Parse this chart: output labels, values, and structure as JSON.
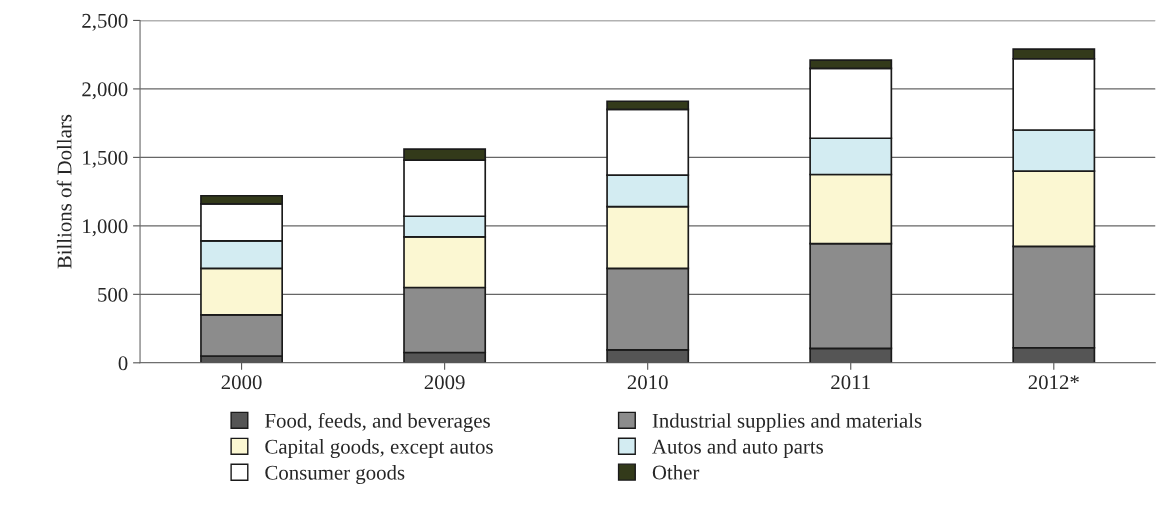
{
  "chart_data": {
    "type": "bar",
    "stacked": true,
    "ylabel": "Billions of Dollars",
    "categories": [
      "2000",
      "2009",
      "2010",
      "2011",
      "2012*"
    ],
    "series": [
      {
        "name": "Food, feeds, and beverages",
        "color": "#555555",
        "values": [
          50,
          75,
          95,
          105,
          110
        ]
      },
      {
        "name": "Industrial supplies and materials",
        "color": "#8c8c8c",
        "values": [
          300,
          475,
          595,
          765,
          740
        ]
      },
      {
        "name": "Capital goods, except autos",
        "color": "#fbf7d2",
        "values": [
          340,
          370,
          450,
          505,
          550
        ]
      },
      {
        "name": "Autos and auto parts",
        "color": "#d3ecf2",
        "values": [
          200,
          150,
          230,
          265,
          300
        ]
      },
      {
        "name": "Consumer goods",
        "color": "#ffffff",
        "values": [
          270,
          410,
          480,
          510,
          520
        ]
      },
      {
        "name": "Other",
        "color": "#333a1a",
        "values": [
          60,
          80,
          60,
          60,
          70
        ]
      }
    ],
    "ylim": [
      0,
      2500
    ],
    "yticks": [
      {
        "value": 0,
        "label": "0"
      },
      {
        "value": 500,
        "label": "500"
      },
      {
        "value": 1000,
        "label": "1,000"
      },
      {
        "value": 1500,
        "label": "1,500"
      },
      {
        "value": 2000,
        "label": "2,000"
      },
      {
        "value": 2500,
        "label": "2,500"
      }
    ],
    "grid": "y",
    "legend": "bottom"
  }
}
